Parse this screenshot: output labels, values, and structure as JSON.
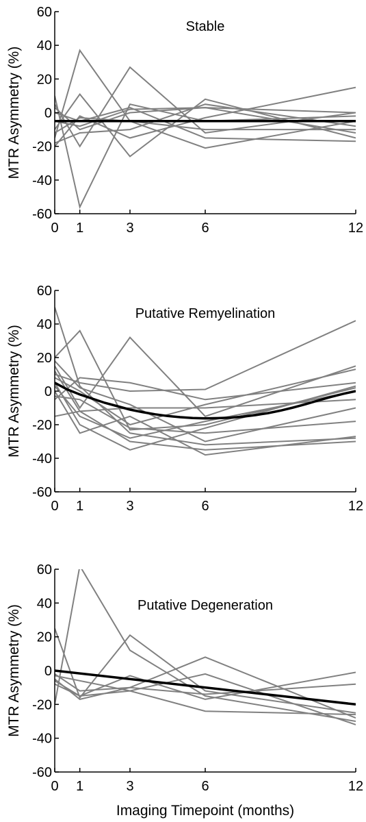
{
  "xlabel": "Imaging Timepoint (months)",
  "colors": {
    "subject": "#808080",
    "fit": "#000000",
    "axis": "#000000"
  },
  "chart_data": [
    {
      "type": "line",
      "title": "Stable",
      "ylabel": "MTR Asymmetry (%)",
      "xlabel": "",
      "xlim": [
        0,
        12
      ],
      "ylim": [
        -60,
        60
      ],
      "xticks": [
        0,
        1,
        3,
        6,
        12
      ],
      "yticks": [
        60,
        40,
        20,
        0,
        -20,
        -40,
        -60
      ],
      "grid": false,
      "series": [
        {
          "x": [
            0,
            1,
            3,
            6,
            12
          ],
          "y": [
            10,
            -56,
            5,
            -5,
            -2
          ]
        },
        {
          "x": [
            0,
            1,
            3,
            6,
            12
          ],
          "y": [
            -15,
            37,
            -5,
            -10,
            -10
          ]
        },
        {
          "x": [
            0,
            1,
            3,
            6,
            12
          ],
          "y": [
            5,
            -20,
            27,
            -12,
            0
          ]
        },
        {
          "x": [
            0,
            1,
            3,
            6,
            12
          ],
          "y": [
            -10,
            11,
            -26,
            8,
            -15
          ]
        },
        {
          "x": [
            0,
            1,
            3,
            6,
            12
          ],
          "y": [
            -20,
            -2,
            -15,
            -3,
            15
          ]
        },
        {
          "x": [
            0,
            1,
            3,
            6,
            12
          ],
          "y": [
            -5,
            -8,
            2,
            3,
            0
          ]
        },
        {
          "x": [
            0,
            1,
            3,
            6,
            12
          ],
          "y": [
            -12,
            -3,
            -5,
            -21,
            -5
          ]
        },
        {
          "x": [
            0,
            1,
            3,
            6,
            12
          ],
          "y": [
            0,
            -5,
            3,
            -15,
            -17
          ]
        },
        {
          "x": [
            0,
            1,
            3,
            6,
            12
          ],
          "y": [
            -18,
            -12,
            -10,
            5,
            -8
          ]
        },
        {
          "x": [
            0,
            1,
            3,
            6,
            12
          ],
          "y": [
            3,
            -10,
            0,
            3,
            -12
          ]
        }
      ],
      "fit": {
        "x": [
          0,
          1,
          3,
          6,
          12
        ],
        "y": [
          -5,
          -5,
          -5,
          -5,
          -5
        ]
      }
    },
    {
      "type": "line",
      "title": "Putative Remyelination",
      "ylabel": "MTR Asymmetry (%)",
      "xlabel": "",
      "xlim": [
        0,
        12
      ],
      "ylim": [
        -60,
        60
      ],
      "xticks": [
        0,
        1,
        3,
        6,
        12
      ],
      "yticks": [
        60,
        40,
        20,
        0,
        -20,
        -40,
        -60
      ],
      "grid": false,
      "series": [
        {
          "x": [
            0,
            1,
            3,
            6,
            12
          ],
          "y": [
            50,
            3,
            -25,
            -32,
            -28
          ]
        },
        {
          "x": [
            0,
            1,
            3,
            6,
            12
          ],
          "y": [
            20,
            36,
            -23,
            -20,
            2
          ]
        },
        {
          "x": [
            0,
            1,
            3,
            6,
            12
          ],
          "y": [
            15,
            -10,
            32,
            -15,
            15
          ]
        },
        {
          "x": [
            0,
            1,
            3,
            6,
            12
          ],
          "y": [
            10,
            5,
            0,
            1,
            42
          ]
        },
        {
          "x": [
            0,
            1,
            3,
            6,
            12
          ],
          "y": [
            5,
            -20,
            -35,
            -22,
            3
          ]
        },
        {
          "x": [
            0,
            1,
            3,
            6,
            12
          ],
          "y": [
            0,
            -25,
            -15,
            -38,
            -27
          ]
        },
        {
          "x": [
            0,
            1,
            3,
            6,
            12
          ],
          "y": [
            -5,
            8,
            5,
            -5,
            5
          ]
        },
        {
          "x": [
            0,
            1,
            3,
            6,
            12
          ],
          "y": [
            12,
            -12,
            -10,
            -10,
            -5
          ]
        },
        {
          "x": [
            0,
            1,
            3,
            6,
            12
          ],
          "y": [
            -3,
            -5,
            -22,
            -25,
            -18
          ]
        },
        {
          "x": [
            0,
            1,
            3,
            6,
            12
          ],
          "y": [
            8,
            0,
            -20,
            -8,
            13
          ]
        },
        {
          "x": [
            0,
            1,
            3,
            6,
            12
          ],
          "y": [
            18,
            2,
            -8,
            -30,
            -10
          ]
        },
        {
          "x": [
            0,
            1,
            3,
            6,
            12
          ],
          "y": [
            -15,
            -12,
            -30,
            -35,
            -30
          ]
        },
        {
          "x": [
            0,
            1,
            3,
            6,
            12
          ],
          "y": [
            3,
            -15,
            -28,
            -18,
            0
          ]
        }
      ],
      "fit": {
        "x": [
          0,
          0.5,
          1,
          1.5,
          2,
          2.5,
          3,
          3.5,
          4,
          4.5,
          5,
          5.5,
          6,
          6.5,
          7,
          7.5,
          8,
          8.5,
          9,
          9.5,
          10,
          10.5,
          11,
          11.5,
          12
        ],
        "y": [
          5,
          1,
          -2,
          -4.5,
          -7,
          -9,
          -11,
          -12.5,
          -13.8,
          -14.8,
          -15.5,
          -16,
          -16.2,
          -16.1,
          -15.8,
          -15.2,
          -14.3,
          -13.1,
          -11.6,
          -9.8,
          -7.8,
          -5.6,
          -3.5,
          -1.6,
          0
        ]
      }
    },
    {
      "type": "line",
      "title": "Putative Degeneration",
      "ylabel": "MTR Asymmetry (%)",
      "xlabel": "",
      "xlim": [
        0,
        12
      ],
      "ylim": [
        -60,
        60
      ],
      "xticks": [
        0,
        1,
        3,
        6,
        12
      ],
      "yticks": [
        60,
        40,
        20,
        0,
        -20,
        -40,
        -60
      ],
      "grid": false,
      "series": [
        {
          "x": [
            0,
            1,
            3,
            6,
            12
          ],
          "y": [
            -20,
            62,
            12,
            -15,
            -30
          ]
        },
        {
          "x": [
            0,
            1,
            3,
            6,
            12
          ],
          "y": [
            25,
            -16,
            21,
            -12,
            -25
          ]
        },
        {
          "x": [
            0,
            1,
            3,
            6,
            12
          ],
          "y": [
            -5,
            -17,
            -10,
            8,
            -28
          ]
        },
        {
          "x": [
            0,
            1,
            3,
            6,
            12
          ],
          "y": [
            -8,
            -15,
            -12,
            -24,
            -26
          ]
        },
        {
          "x": [
            0,
            1,
            3,
            6,
            12
          ],
          "y": [
            -3,
            -6,
            -12,
            -2,
            -32
          ]
        },
        {
          "x": [
            0,
            1,
            3,
            6,
            12
          ],
          "y": [
            -6,
            -15,
            -3,
            -17,
            -1
          ]
        },
        {
          "x": [
            0,
            1,
            3,
            6,
            12
          ],
          "y": [
            -2,
            -12,
            -10,
            -14,
            -8
          ]
        }
      ],
      "fit": {
        "x": [
          0,
          12
        ],
        "y": [
          0,
          -20
        ]
      }
    }
  ]
}
